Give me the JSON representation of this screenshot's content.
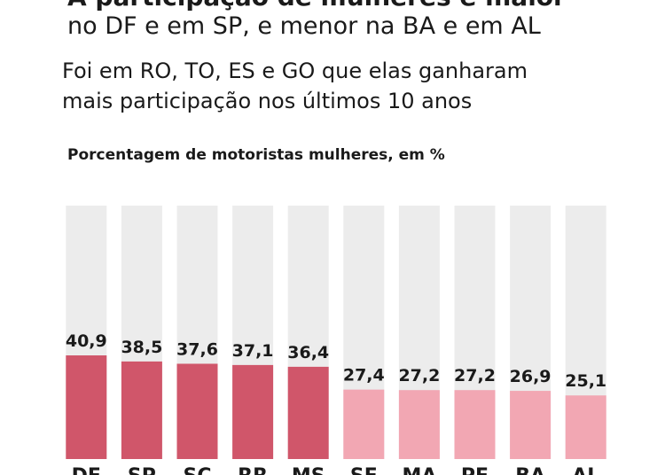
{
  "chart_data": {
    "type": "bar",
    "title": "A participação de mulheres é maior",
    "subtitle": "no DF e em SP, e menor na BA e em AL",
    "description": [
      "Foi em RO, TO, ES e GO que elas ganharam",
      "mais participação nos últimos 10 anos"
    ],
    "y_label": "Porcentagem de motoristas mulheres, em %",
    "categories": [
      "DF",
      "SP",
      "SC",
      "RR",
      "MS",
      "SE",
      "MA",
      "PE",
      "BA",
      "AL"
    ],
    "values": [
      40.9,
      38.5,
      37.6,
      37.1,
      36.4,
      27.4,
      27.2,
      27.2,
      26.9,
      25.1
    ],
    "value_labels": [
      "40,9",
      "38,5",
      "37,6",
      "37,1",
      "36,4",
      "27,4",
      "27,2",
      "27,2",
      "26,9",
      "25,1"
    ],
    "colors": [
      "#d0566a",
      "#d0566a",
      "#d0566a",
      "#d0566a",
      "#d0566a",
      "#f2a7b3",
      "#f2a7b3",
      "#f2a7b3",
      "#f2a7b3",
      "#f2a7b3"
    ],
    "background_color": "#ececec",
    "ylim": [
      0,
      100
    ]
  }
}
